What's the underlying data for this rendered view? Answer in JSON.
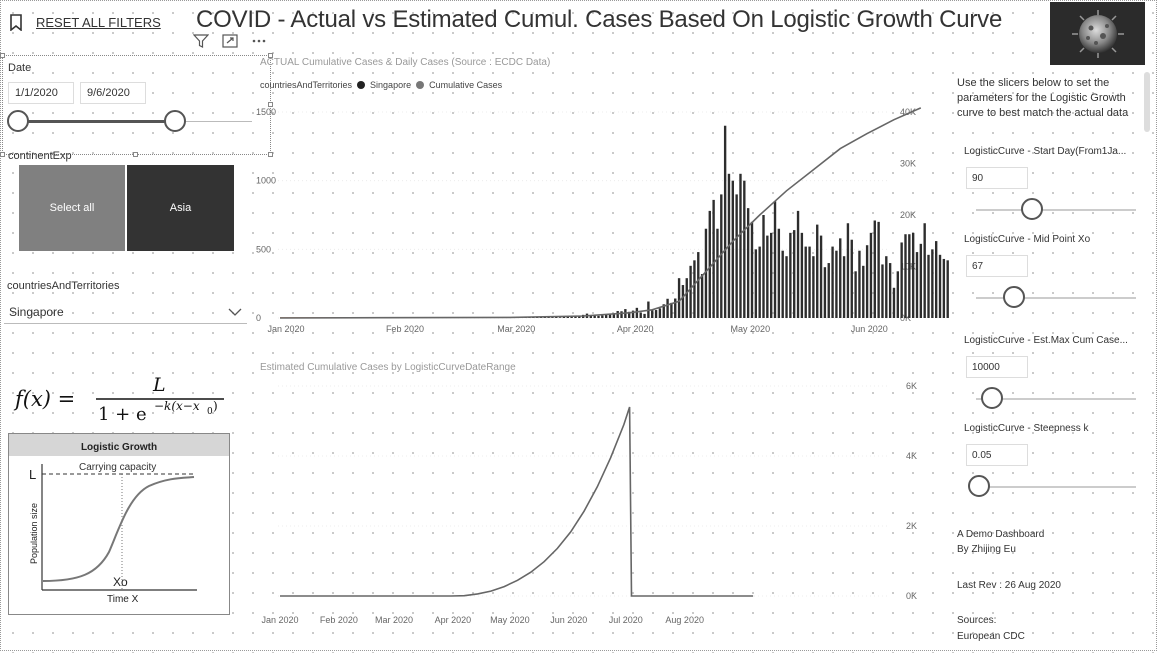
{
  "header": {
    "reset_label": "RESET ALL FILTERS",
    "title": "COVID - Actual vs Estimated Cumul. Cases Based On Logistic Growth Curve"
  },
  "date_slicer": {
    "label": "Date",
    "start": "1/1/2020",
    "end": "9/6/2020"
  },
  "continent_slicer": {
    "label": "continentExp",
    "options": [
      "Select all",
      "Asia"
    ]
  },
  "country_slicer": {
    "label": "countriesAndTerritories",
    "selected": "Singapore"
  },
  "formula": {
    "lhs": "f(x) =",
    "numerator": "L",
    "denominator": "1 + e",
    "exponent": "−k(x−x",
    "sub": "0",
    "close": ")"
  },
  "logistic_diagram": {
    "title": "Logistic Growth",
    "carrying": "Carrying capacity",
    "L": "L",
    "ylabel": "Population size",
    "xo": "Xo",
    "xlabel": "Time X"
  },
  "description": "Use the slicers below to set the parameters for the Logistic Growth curve to best match the actual data",
  "params": [
    {
      "label": "LogisticCurve - Start Day(From1Ja...",
      "value": "90",
      "level": 0.35
    },
    {
      "label": "LogisticCurve - Mid Point Xo",
      "value": "67",
      "level": 0.24
    },
    {
      "label": "LogisticCurve - Est.Max Cum Case...",
      "value": "10000",
      "level": 0.1
    },
    {
      "label": "LogisticCurve - Steepness k",
      "value": "0.05",
      "level": 0.02
    }
  ],
  "credits": {
    "line1": "A Demo Dashboard",
    "line2": "By Zhijing Eu",
    "rev": "Last Rev : 26 Aug 2020",
    "sources": "Sources:",
    "source1": "European CDC"
  },
  "colors": {
    "bar": "#2d2d2d",
    "line": "#666666",
    "tile_all": "#808080",
    "tile_asia": "#333333"
  },
  "chart_data": [
    {
      "type": "bar",
      "title": "ACTUAL Cumulative Cases & Daily Cases (Source : ECDC Data)",
      "legend_title": "countriesAndTerritories",
      "legend": [
        "Singapore",
        "Cumulative Cases"
      ],
      "x_ticks": [
        "Jan 2020",
        "Feb 2020",
        "Mar 2020",
        "Apr 2020",
        "May 2020",
        "Jun 2020"
      ],
      "y_ticks_left": [
        "0",
        "500",
        "1000",
        "1500"
      ],
      "y_ticks_right": [
        "0K",
        "10K",
        "20K",
        "30K",
        "40K"
      ],
      "ylim_left": [
        0,
        1500
      ],
      "ylim_right": [
        0,
        40000
      ],
      "series": [
        {
          "name": "Singapore",
          "type": "bar",
          "start": "2020-03-01",
          "values": [
            0,
            0,
            1,
            0,
            1,
            2,
            3,
            0,
            2,
            4,
            5,
            6,
            9,
            5,
            12,
            8,
            13,
            17,
            14,
            23,
            32,
            15,
            19,
            16,
            18,
            26,
            31,
            34,
            51,
            49,
            65,
            45,
            54,
            74,
            40,
            30,
            120,
            60,
            58,
            70,
            100,
            140,
            110,
            142,
            290,
            240,
            290,
            380,
            420,
            480,
            320,
            650,
            780,
            860,
            650,
            900,
            1400,
            1050,
            1000,
            900,
            1050,
            1000,
            800,
            700,
            500,
            520,
            750,
            600,
            620,
            850,
            650,
            490,
            450,
            620,
            640,
            780,
            620,
            520,
            520,
            450,
            680,
            600,
            370,
            400,
            520,
            490,
            580,
            450,
            690,
            570,
            340,
            490,
            380,
            530,
            620,
            710,
            700,
            390,
            450,
            400,
            220,
            340,
            550,
            610,
            610,
            620,
            480,
            540,
            690,
            460,
            500,
            560,
            460,
            430,
            420,
            330,
            490,
            530,
            320,
            390,
            410,
            380,
            570,
            580,
            520
          ]
        },
        {
          "name": "Cumulative Cases",
          "type": "line",
          "points": [
            [
              "2020-01-01",
              0
            ],
            [
              "2020-03-01",
              110
            ],
            [
              "2020-03-20",
              380
            ],
            [
              "2020-04-01",
              1000
            ],
            [
              "2020-04-07",
              1600
            ],
            [
              "2020-04-14",
              3250
            ],
            [
              "2020-04-21",
              9000
            ],
            [
              "2020-04-28",
              14900
            ],
            [
              "2020-05-05",
              20000
            ],
            [
              "2020-05-12",
              24700
            ],
            [
              "2020-05-19",
              28800
            ],
            [
              "2020-05-26",
              32900
            ],
            [
              "2020-06-02",
              35800
            ],
            [
              "2020-06-09",
              38500
            ],
            [
              "2020-06-16",
              40800
            ]
          ]
        }
      ]
    },
    {
      "type": "line",
      "title": "Estimated Cumulative Cases by LogisticCurveDateRange",
      "x_ticks": [
        "Jan 2020",
        "Feb 2020",
        "Mar 2020",
        "Apr 2020",
        "May 2020",
        "Jun 2020",
        "Jul 2020",
        "Aug 2020"
      ],
      "y_ticks": [
        "0K",
        "2K",
        "4K",
        "6K"
      ],
      "ylim": [
        0,
        6000
      ],
      "series": [
        {
          "name": "Estimated Cumulative Cases",
          "points": [
            [
              "2020-01-01",
              0
            ],
            [
              "2020-03-31",
              0
            ],
            [
              "2020-04-07",
              10
            ],
            [
              "2020-04-14",
              60
            ],
            [
              "2020-04-21",
              140
            ],
            [
              "2020-04-28",
              270
            ],
            [
              "2020-05-05",
              450
            ],
            [
              "2020-05-12",
              680
            ],
            [
              "2020-05-19",
              980
            ],
            [
              "2020-05-26",
              1360
            ],
            [
              "2020-06-02",
              1830
            ],
            [
              "2020-06-09",
              2420
            ],
            [
              "2020-06-16",
              3120
            ],
            [
              "2020-06-23",
              3950
            ],
            [
              "2020-06-30",
              4900
            ],
            [
              "2020-07-03",
              5400
            ],
            [
              "2020-07-04",
              0
            ],
            [
              "2020-09-06",
              0
            ]
          ]
        }
      ]
    }
  ]
}
